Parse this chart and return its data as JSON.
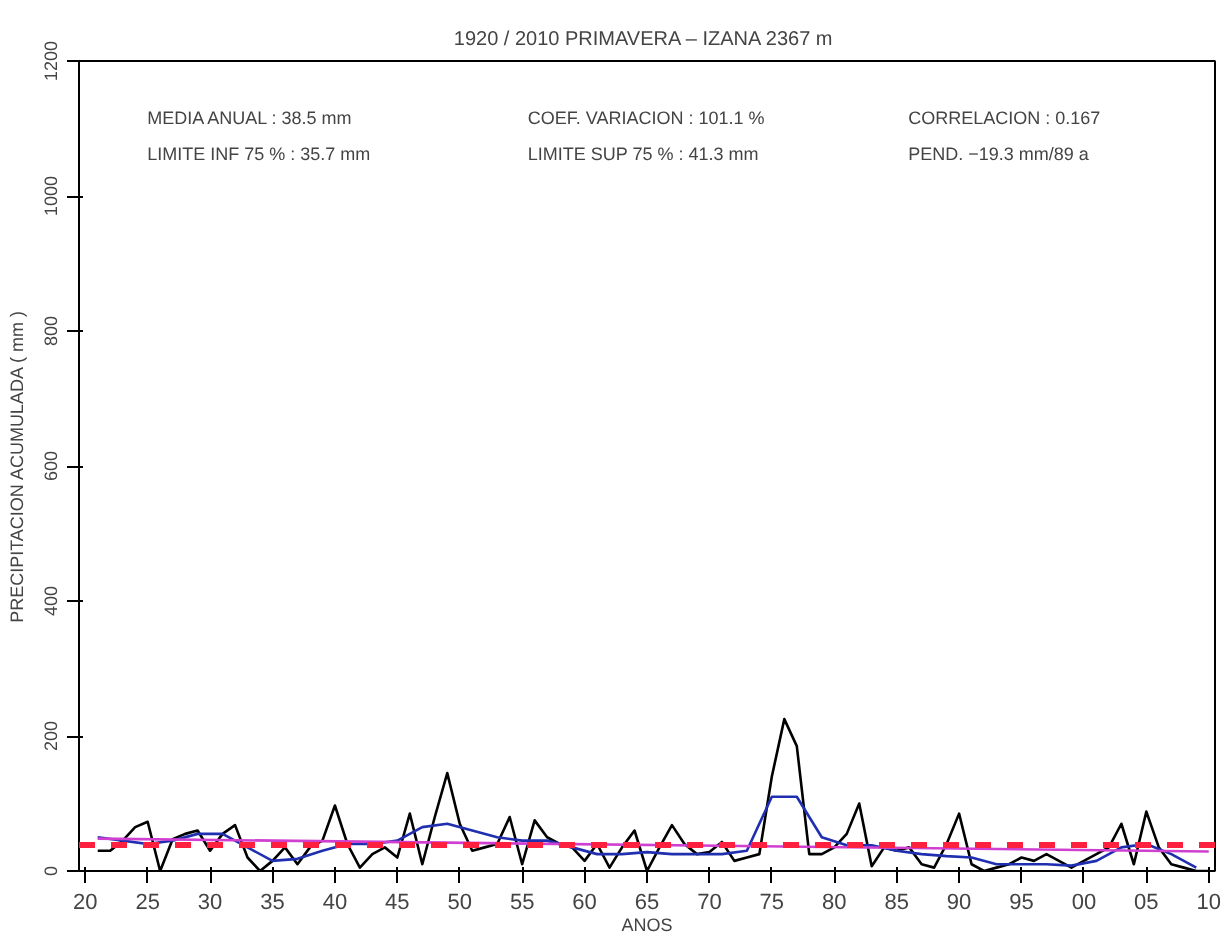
{
  "chart_data": {
    "type": "line",
    "title": "1920 / 2010 PRIMAVERA – IZANA  2367 m",
    "xlabel": "ANOS",
    "ylabel": "PRECIPITACION ACUMULADA ( mm )",
    "annotations": [
      "MEDIA ANUAL    :   38.5 mm",
      "LIMITE INF 75 % :   35.7 mm",
      "COEF. VARIACION :  101.1 %",
      "LIMITE SUP 75 % :   41.3 mm",
      "CORRELACION : 0.167",
      "PEND.  −19.3 mm/89 a"
    ],
    "xlim": [
      1919.5,
      2010.5
    ],
    "ylim": [
      0,
      1200
    ],
    "xticks": [
      {
        "value": 1920,
        "label": "20"
      },
      {
        "value": 1925,
        "label": "25"
      },
      {
        "value": 1930,
        "label": "30"
      },
      {
        "value": 1935,
        "label": "35"
      },
      {
        "value": 1940,
        "label": "40"
      },
      {
        "value": 1945,
        "label": "45"
      },
      {
        "value": 1950,
        "label": "50"
      },
      {
        "value": 1955,
        "label": "55"
      },
      {
        "value": 1960,
        "label": "60"
      },
      {
        "value": 1965,
        "label": "65"
      },
      {
        "value": 1970,
        "label": "70"
      },
      {
        "value": 1975,
        "label": "75"
      },
      {
        "value": 1980,
        "label": "80"
      },
      {
        "value": 1985,
        "label": "85"
      },
      {
        "value": 1990,
        "label": "90"
      },
      {
        "value": 1995,
        "label": "95"
      },
      {
        "value": 2000,
        "label": "00"
      },
      {
        "value": 2005,
        "label": "05"
      },
      {
        "value": 2010,
        "label": "10"
      }
    ],
    "yticks": [
      0,
      200,
      400,
      600,
      800,
      1000,
      1200
    ],
    "grid": false,
    "series": [
      {
        "color": "#000000",
        "x": [
          1921,
          1922,
          1923,
          1924,
          1925,
          1926,
          1927,
          1928,
          1929,
          1930,
          1931,
          1932,
          1933,
          1934,
          1935,
          1936,
          1937,
          1938,
          1939,
          1940,
          1941,
          1942,
          1943,
          1944,
          1945,
          1946,
          1947,
          1948,
          1949,
          1950,
          1951,
          1952,
          1953,
          1954,
          1955,
          1956,
          1957,
          1958,
          1959,
          1960,
          1961,
          1962,
          1963,
          1964,
          1965,
          1966,
          1967,
          1968,
          1969,
          1970,
          1971,
          1972,
          1973,
          1974,
          1975,
          1976,
          1977,
          1978,
          1979,
          1980,
          1981,
          1982,
          1983,
          1984,
          1985,
          1986,
          1987,
          1988,
          1989,
          1990,
          1991,
          1992,
          1993,
          1994,
          1995,
          1996,
          1997,
          1998,
          1999,
          2000,
          2001,
          2002,
          2003,
          2004,
          2005,
          2006,
          2007,
          2008,
          2009,
          2010
        ],
        "values": [
          30,
          30,
          45,
          65,
          73,
          0,
          47,
          55,
          60,
          30,
          55,
          68,
          20,
          0,
          15,
          35,
          10,
          35,
          45,
          97,
          40,
          5,
          25,
          35,
          20,
          85,
          10,
          80,
          145,
          70,
          30,
          35,
          40,
          80,
          10,
          75,
          50,
          40,
          35,
          15,
          40,
          5,
          35,
          60,
          0,
          35,
          68,
          40,
          25,
          28,
          43,
          15,
          20,
          25,
          140,
          225,
          185,
          25,
          25,
          35,
          55,
          100,
          7,
          35,
          30,
          35,
          10,
          5,
          40,
          85,
          10,
          0,
          5,
          10,
          20,
          15,
          25,
          15,
          5,
          15,
          25,
          35,
          70,
          10,
          88,
          35,
          10,
          5,
          0,
          0
        ]
      },
      {
        "color": "#1f2fb0",
        "x": [
          1921,
          1923,
          1925,
          1927,
          1929,
          1931,
          1933,
          1935,
          1937,
          1939,
          1941,
          1943,
          1945,
          1947,
          1949,
          1951,
          1953,
          1955,
          1957,
          1959,
          1961,
          1963,
          1965,
          1967,
          1969,
          1971,
          1973,
          1975,
          1977,
          1979,
          1981,
          1983,
          1985,
          1987,
          1989,
          1991,
          1993,
          1995,
          1997,
          1999,
          2001,
          2003,
          2005,
          2007,
          2009
        ],
        "values": [
          50,
          45,
          40,
          45,
          55,
          55,
          35,
          15,
          18,
          30,
          40,
          40,
          45,
          65,
          70,
          60,
          50,
          45,
          45,
          35,
          25,
          25,
          28,
          25,
          25,
          25,
          30,
          110,
          110,
          50,
          38,
          38,
          30,
          25,
          22,
          20,
          10,
          10,
          10,
          8,
          15,
          35,
          40,
          25,
          5
        ]
      },
      {
        "color": "#d040d0",
        "x": [
          1921,
          2010
        ],
        "values": [
          48,
          29
        ]
      }
    ],
    "ref_lines": [
      {
        "axis": "y",
        "value": 38.5,
        "color": "#ff2040",
        "line_style": "dashed"
      }
    ]
  }
}
